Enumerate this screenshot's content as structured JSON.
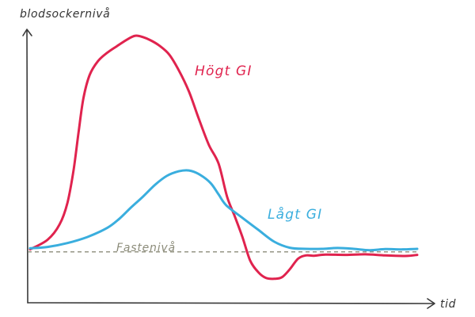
{
  "chart_data": {
    "type": "line",
    "title": "",
    "xlabel": "tid",
    "ylabel": "blodsockernivå",
    "xlim": [
      0,
      100
    ],
    "ylim": [
      0,
      100
    ],
    "grid": false,
    "legend": "none",
    "axis_color": "#3a3a3a",
    "reference_line": {
      "label": "Fastenivå",
      "value": 18.5,
      "color": "#8c8c7a"
    },
    "series": [
      {
        "name": "Högt GI",
        "color": "#e0234e",
        "x": [
          0.6,
          5.1,
          8.2,
          10.2,
          11.8,
          13.1,
          14.3,
          15.9,
          18.0,
          20.4,
          22.9,
          25.5,
          27.6,
          29.6,
          31.6,
          33.7,
          36.3,
          38.8,
          41.4,
          43.9,
          46.5,
          49.0,
          51.2,
          53.1,
          55.1,
          57.1,
          59.2,
          61.2,
          63.3,
          65.3,
          67.3,
          69.4,
          71.4,
          73.5,
          76.5,
          81.6,
          86.7,
          91.8,
          96.9,
          100.0
        ],
        "y": [
          19.4,
          22.9,
          28.5,
          36.3,
          48.5,
          62.5,
          74.4,
          82.8,
          87.8,
          90.9,
          93.3,
          95.7,
          97.1,
          96.6,
          95.4,
          93.6,
          90.3,
          84.5,
          76.8,
          67.0,
          57.4,
          50.6,
          38.5,
          31.6,
          24.0,
          15.4,
          11.1,
          9.0,
          8.7,
          9.3,
          12.2,
          16.0,
          17.2,
          17.1,
          17.5,
          17.4,
          17.6,
          17.2,
          17.0,
          17.4
        ]
      },
      {
        "name": "Lågt GI",
        "color": "#3aaede",
        "x": [
          0.6,
          5.1,
          10.2,
          15.3,
          20.4,
          23.5,
          26.5,
          29.6,
          32.7,
          35.7,
          38.8,
          41.4,
          43.9,
          46.9,
          49.0,
          51.0,
          55.1,
          59.2,
          63.3,
          67.3,
          71.4,
          75.5,
          79.6,
          83.7,
          87.8,
          91.8,
          95.9,
          100.0
        ],
        "y": [
          19.8,
          20.3,
          21.7,
          23.9,
          27.2,
          30.5,
          34.6,
          38.6,
          42.9,
          46.1,
          47.8,
          48.1,
          46.8,
          43.6,
          39.4,
          35.4,
          30.9,
          26.5,
          22.2,
          20.0,
          19.6,
          19.6,
          19.9,
          19.6,
          19.1,
          19.5,
          19.4,
          19.6
        ]
      }
    ]
  }
}
